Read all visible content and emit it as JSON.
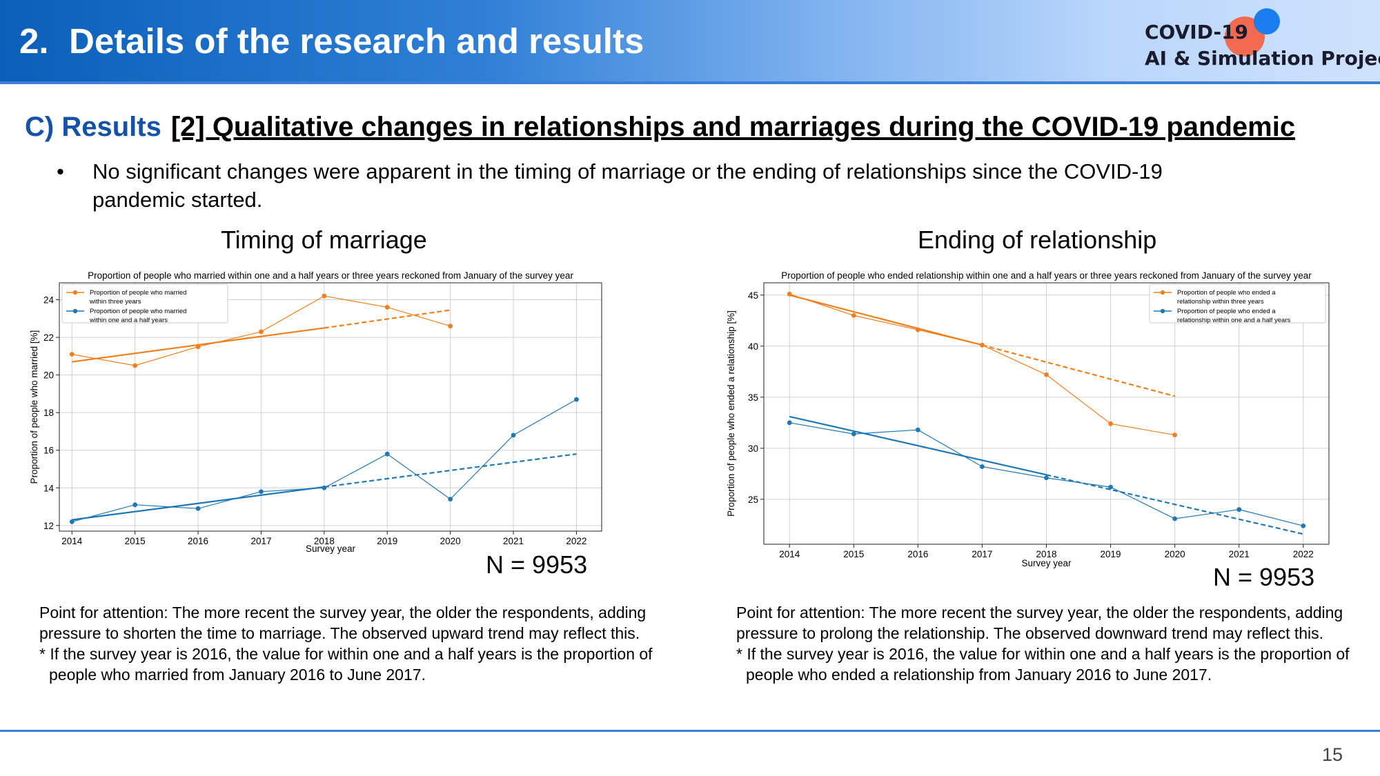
{
  "header": {
    "number": "2.",
    "title": "Details of the research and results",
    "logo_line1": "COVID-19",
    "logo_line2": "AI & Simulation Project"
  },
  "section": {
    "label": "C) Results",
    "topic": "[2] Qualitative changes in relationships and marriages during the COVID-19 pandemic"
  },
  "bullet": {
    "symbol": "•",
    "text": "No significant changes were apparent in the timing of marriage or the ending of relationships since the COVID-19 pandemic started."
  },
  "left": {
    "heading": "Timing of marriage",
    "n_label": "N = 9953",
    "note": "Point for attention: The more recent the survey year, the older the respondents, adding pressure to shorten the time to marriage. The observed upward trend may reflect this.",
    "footnote": "* If the survey year is 2016, the value for within one and a half years is the proportion of people who married from January 2016 to June 2017."
  },
  "right": {
    "heading": "Ending of relationship",
    "n_label": "N = 9953",
    "note": "Point for attention: The more recent the survey year, the older the respondents, adding pressure to prolong the relationship. The observed downward trend may reflect this.",
    "footnote": "* If the survey year is 2016, the value for within one and a half years is the proportion of people who ended a relationship from January 2016 to June 2017."
  },
  "page_number": "15",
  "chart_data": [
    {
      "type": "line",
      "title": "Proportion of people who married within one and a half years or three years reckoned from January of the survey year",
      "xlabel": "Survey year",
      "ylabel": "Proportion of people who married [%]",
      "x": [
        2014,
        2015,
        2016,
        2017,
        2018,
        2019,
        2020,
        2021,
        2022
      ],
      "xlim": [
        2013.8,
        2022.4
      ],
      "ylim": [
        11.7,
        24.9
      ],
      "yticks": [
        12,
        14,
        16,
        18,
        20,
        22,
        24
      ],
      "grid": true,
      "legend": "top-left",
      "series": [
        {
          "name_lines": [
            "Proportion of people who married",
            "within three years"
          ],
          "color": "#f07f1c",
          "values": [
            21.1,
            20.5,
            21.5,
            22.3,
            24.2,
            23.6,
            22.6,
            null,
            null
          ],
          "trend_solid": [
            [
              2014,
              20.7
            ],
            [
              2018,
              22.5
            ]
          ],
          "trend_dashed": [
            [
              2018,
              22.5
            ],
            [
              2020,
              23.45
            ]
          ]
        },
        {
          "name_lines": [
            "Proportion of people who married",
            "within one and a half years"
          ],
          "color": "#1f77b4",
          "values": [
            12.2,
            13.1,
            12.9,
            13.8,
            14.0,
            15.8,
            13.4,
            16.8,
            18.7
          ],
          "trend_solid": [
            [
              2014,
              12.3
            ],
            [
              2018,
              14.05
            ]
          ],
          "trend_dashed": [
            [
              2018,
              14.05
            ],
            [
              2022,
              15.8
            ]
          ]
        }
      ]
    },
    {
      "type": "line",
      "title": "Proportion of people who ended relationship within one and a half years or three years reckoned from January of the survey year",
      "xlabel": "Survey year",
      "ylabel": "Proportion of people who ended a relationship [%]",
      "x": [
        2014,
        2015,
        2016,
        2017,
        2018,
        2019,
        2020,
        2021,
        2022
      ],
      "xlim": [
        2013.6,
        2022.4
      ],
      "ylim": [
        20.6,
        46.2
      ],
      "yticks": [
        25,
        30,
        35,
        40,
        45
      ],
      "grid": true,
      "legend": "top-right",
      "series": [
        {
          "name_lines": [
            "Proportion of people who ended a",
            "relationship within three years"
          ],
          "color": "#f07f1c",
          "values": [
            45.1,
            43.0,
            41.6,
            40.1,
            37.2,
            32.4,
            31.3,
            null,
            null
          ],
          "trend_solid": [
            [
              2014,
              45.0
            ],
            [
              2017,
              40.1
            ]
          ],
          "trend_dashed": [
            [
              2017,
              40.1
            ],
            [
              2020,
              35.1
            ]
          ]
        },
        {
          "name_lines": [
            "Proportion of people who ended a",
            "relationship within one and a half years"
          ],
          "color": "#1f77b4",
          "values": [
            32.5,
            31.4,
            31.8,
            28.2,
            27.1,
            26.2,
            23.1,
            24.0,
            22.4
          ],
          "trend_solid": [
            [
              2014,
              33.1
            ],
            [
              2018,
              27.4
            ]
          ],
          "trend_dashed": [
            [
              2018,
              27.4
            ],
            [
              2022,
              21.6
            ]
          ]
        }
      ]
    }
  ]
}
